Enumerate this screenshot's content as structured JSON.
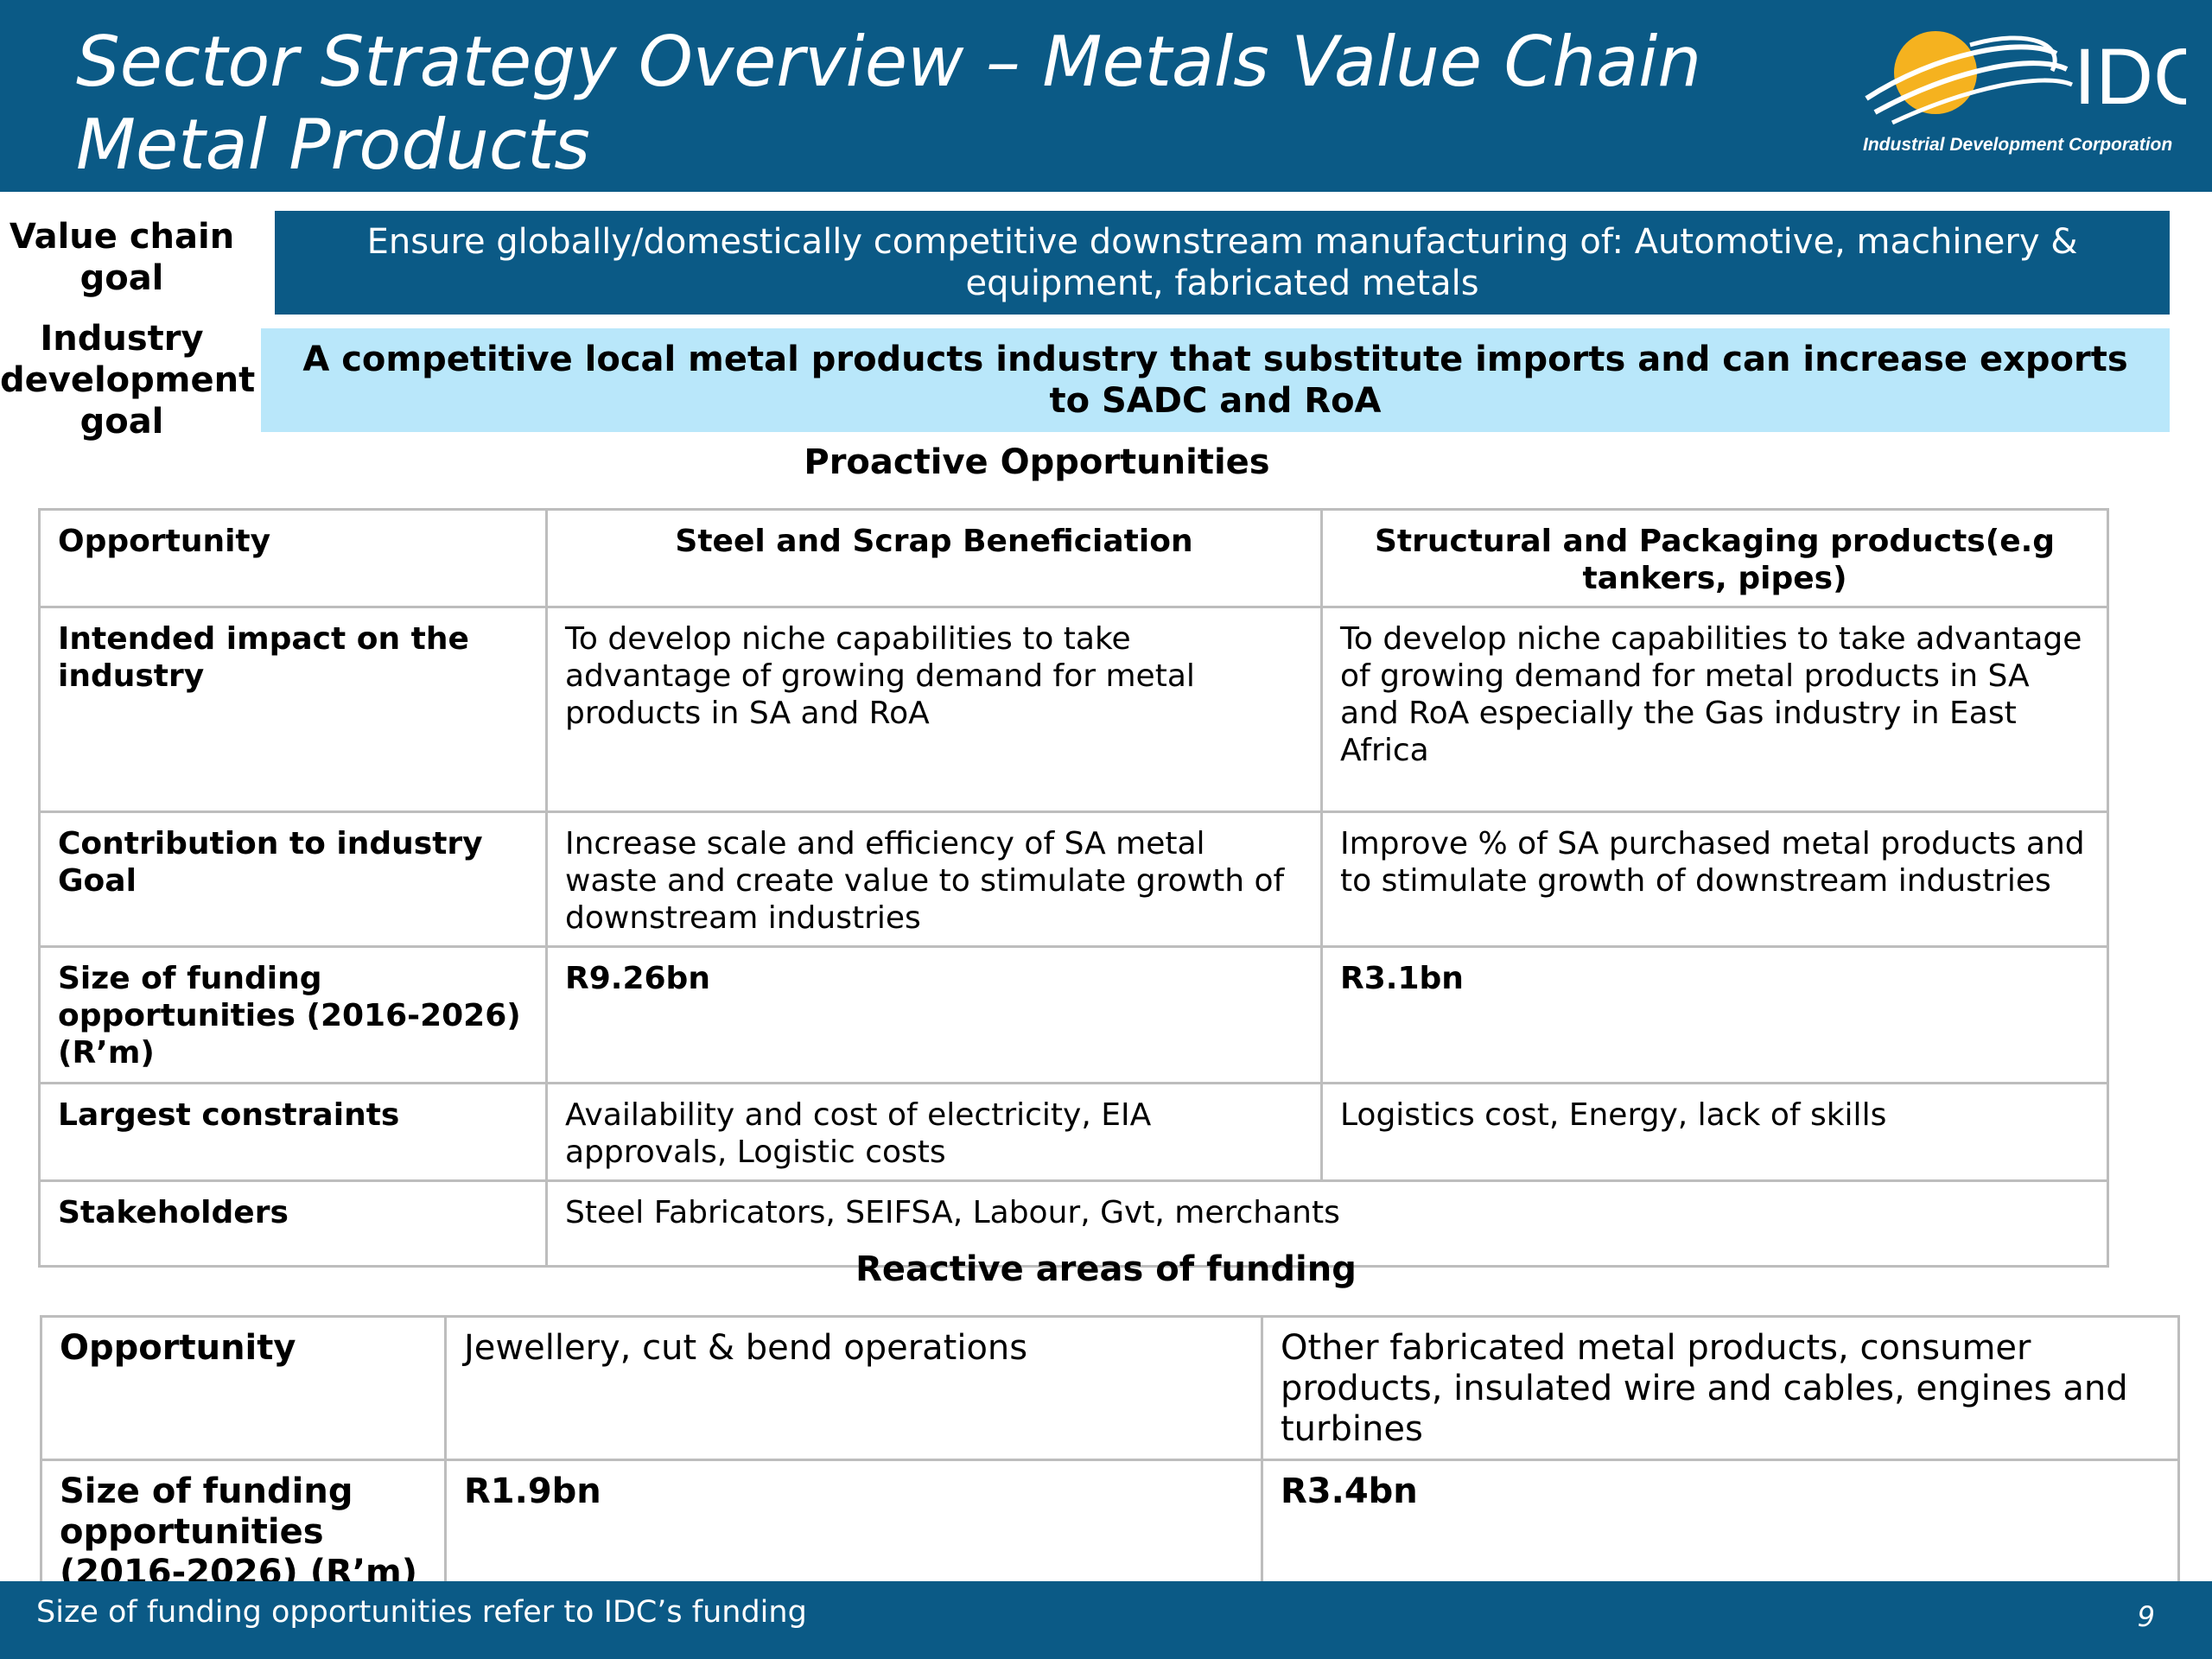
{
  "header": {
    "title_line1": "Sector Strategy Overview – Metals Value Chain",
    "title_line2": "Metal Products",
    "logo_text": "IDC",
    "logo_caption": "Industrial Development Corporation"
  },
  "goals": {
    "value_chain_label_1": "Value chain",
    "value_chain_label_2": "goal",
    "value_chain_text_1": "Ensure globally/domestically competitive downstream manufacturing of: Automotive, machinery &",
    "value_chain_text_2": "equipment, fabricated metals",
    "industry_label_1": "Industry",
    "industry_label_2": "development",
    "industry_label_3": "goal",
    "industry_text_1": "A competitive local metal products industry that substitute imports and  can increase exports",
    "industry_text_2": "to SADC and RoA"
  },
  "proactive": {
    "section_title": "Proactive Opportunities",
    "rows": [
      {
        "label": "Opportunity",
        "col1": "Steel and Scrap Beneficiation",
        "col2": "Structural and Packaging products(e.g tankers, pipes)"
      },
      {
        "label": "Intended impact on the industry",
        "col1": "To develop niche capabilities to take advantage of growing demand for metal products in SA and RoA",
        "col2": "To develop niche capabilities to take advantage of growing demand for metal products in SA and RoA especially the Gas industry in East Africa"
      },
      {
        "label": "Contribution to industry Goal",
        "col1": "Increase scale and efficiency of SA metal waste and create value to stimulate growth of downstream industries",
        "col2": "Improve % of SA purchased metal products and to stimulate growth of downstream industries"
      },
      {
        "label": "Size of funding opportunities (2016-2026) (R’m)",
        "col1": "R9.26bn",
        "col2": "R3.1bn"
      },
      {
        "label": "Largest constraints",
        "col1": "Availability and cost of electricity, EIA approvals, Logistic costs",
        "col2": "Logistics cost, Energy, lack of skills"
      },
      {
        "label": "Stakeholders",
        "col1": "Steel Fabricators, SEIFSA, Labour, Gvt, merchants"
      }
    ]
  },
  "reactive": {
    "section_title": "Reactive areas of funding",
    "rows": [
      {
        "label": "Opportunity",
        "col1": "Jewellery, cut & bend operations",
        "col2": "Other fabricated metal products, consumer products, insulated wire and cables, engines and turbines"
      },
      {
        "label": "Size of funding opportunities (2016-2026) (R’m)",
        "col1": "R1.9bn",
        "col2": "R3.4bn"
      }
    ]
  },
  "footer": {
    "note": "Size of funding opportunities refer to IDC’s funding",
    "page_number": "9"
  },
  "colors": {
    "brand_blue": "#0b5a86",
    "light_blue": "#b9e7fa",
    "logo_sun": "#f5b21f"
  }
}
